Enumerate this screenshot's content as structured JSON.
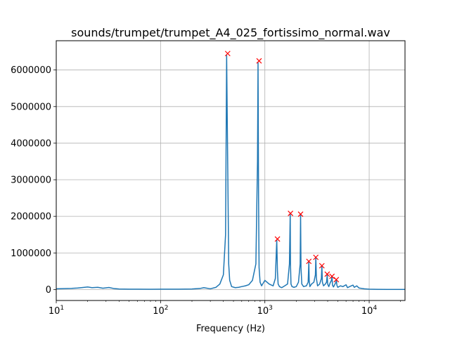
{
  "chart_data": {
    "type": "line",
    "title": "sounds/trumpet/trumpet_A4_025_fortissimo_normal.wav",
    "xlabel": "Frequency (Hz)",
    "ylabel": "",
    "xscale": "log",
    "xlim": [
      10,
      22050
    ],
    "ylim": [
      -300000,
      6800000
    ],
    "grid": true,
    "x_ticks": [
      {
        "value": 10,
        "base": "10",
        "exp": "1"
      },
      {
        "value": 100,
        "base": "10",
        "exp": "2"
      },
      {
        "value": 1000,
        "base": "10",
        "exp": "3"
      },
      {
        "value": 10000,
        "base": "10",
        "exp": "4"
      }
    ],
    "y_ticks": [
      {
        "value": 0,
        "label": "0"
      },
      {
        "value": 1000000,
        "label": "1000000"
      },
      {
        "value": 2000000,
        "label": "2000000"
      },
      {
        "value": 3000000,
        "label": "3000000"
      },
      {
        "value": 4000000,
        "label": "4000000"
      },
      {
        "value": 5000000,
        "label": "5000000"
      },
      {
        "value": 6000000,
        "label": "6000000"
      }
    ],
    "colors": {
      "line": "#1f77b4",
      "peak_marker": "#ff0000",
      "grid": "#b0b0b0"
    },
    "series": [
      {
        "style": "line",
        "x": [
          10,
          12,
          14,
          16,
          18,
          20,
          22,
          25,
          28,
          32,
          36,
          40,
          50,
          60,
          80,
          100,
          150,
          200,
          240,
          260,
          300,
          340,
          370,
          400,
          420,
          430,
          440,
          450,
          460,
          480,
          520,
          560,
          600,
          650,
          700,
          760,
          820,
          850,
          860,
          870,
          880,
          900,
          930,
          1000,
          1100,
          1200,
          1260,
          1300,
          1320,
          1340,
          1380,
          1450,
          1550,
          1650,
          1720,
          1750,
          1760,
          1780,
          1820,
          1900,
          2000,
          2100,
          2180,
          2200,
          2220,
          2260,
          2350,
          2500,
          2600,
          2640,
          2660,
          2700,
          2800,
          2950,
          3050,
          3080,
          3120,
          3200,
          3350,
          3480,
          3520,
          3560,
          3650,
          3800,
          3900,
          3960,
          4000,
          4100,
          4250,
          4350,
          4400,
          4450,
          4550,
          4700,
          4800,
          4850,
          4900,
          5000,
          5300,
          5600,
          6000,
          6200,
          6500,
          7000,
          7200,
          7600,
          8000,
          9000,
          10000,
          12000,
          15000,
          18000,
          22050
        ],
        "y": [
          20000,
          25000,
          30000,
          40000,
          55000,
          70000,
          50000,
          60000,
          35000,
          55000,
          25000,
          15000,
          10000,
          10000,
          8000,
          10000,
          10000,
          15000,
          30000,
          50000,
          20000,
          60000,
          150000,
          400000,
          1500000,
          6400000,
          3500000,
          700000,
          250000,
          80000,
          50000,
          60000,
          80000,
          100000,
          130000,
          250000,
          700000,
          3500000,
          6200000,
          2500000,
          600000,
          200000,
          100000,
          250000,
          150000,
          100000,
          300000,
          1350000,
          500000,
          150000,
          80000,
          50000,
          100000,
          150000,
          700000,
          2080000,
          700000,
          150000,
          80000,
          60000,
          80000,
          200000,
          700000,
          2050000,
          600000,
          150000,
          80000,
          100000,
          200000,
          750000,
          250000,
          80000,
          150000,
          200000,
          400000,
          870000,
          300000,
          100000,
          150000,
          300000,
          650000,
          200000,
          100000,
          150000,
          200000,
          400000,
          150000,
          80000,
          200000,
          250000,
          350000,
          120000,
          70000,
          150000,
          200000,
          250000,
          120000,
          60000,
          100000,
          80000,
          130000,
          50000,
          80000,
          120000,
          60000,
          100000,
          40000,
          20000,
          10000,
          5000,
          3000,
          2000,
          1000
        ]
      },
      {
        "style": "markers",
        "marker": "x",
        "points": [
          {
            "x": 440,
            "y": 6450000
          },
          {
            "x": 880,
            "y": 6250000
          },
          {
            "x": 1320,
            "y": 1380000
          },
          {
            "x": 1760,
            "y": 2080000
          },
          {
            "x": 2200,
            "y": 2060000
          },
          {
            "x": 2640,
            "y": 770000
          },
          {
            "x": 3080,
            "y": 880000
          },
          {
            "x": 3520,
            "y": 650000
          },
          {
            "x": 3960,
            "y": 420000
          },
          {
            "x": 4400,
            "y": 360000
          },
          {
            "x": 4840,
            "y": 270000
          }
        ]
      }
    ]
  }
}
